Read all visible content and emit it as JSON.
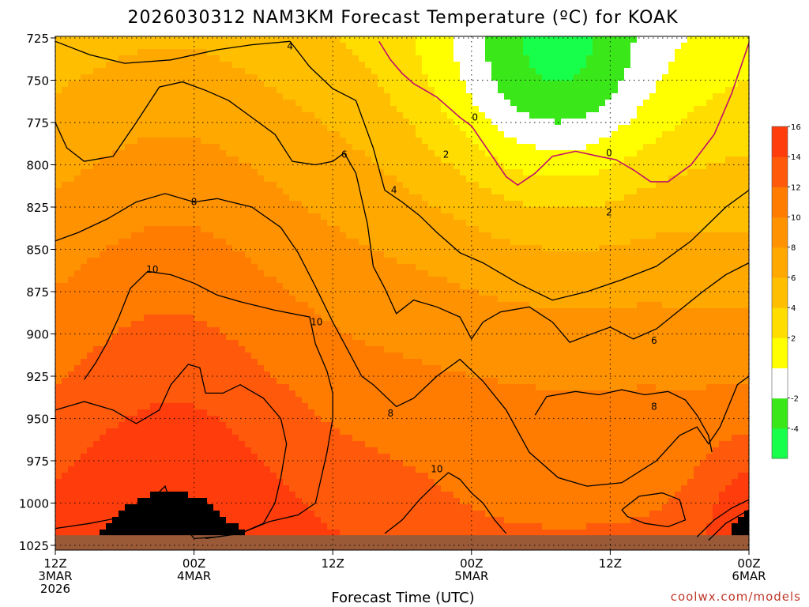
{
  "title": "2026030312 NAM3KM Forecast Temperature (ºC) for KOAK",
  "xlabel": "Forecast Time (UTC)",
  "credit": "coolwx.com/models",
  "colors": {
    "bands": [
      "#18ff4b",
      "#3ae81a",
      "#ffffff",
      "#ffff00",
      "#ffdd00",
      "#ffbf00",
      "#ffa800",
      "#ff9200",
      "#ff7c00",
      "#ff5a0b",
      "#ff3c0c"
    ],
    "ground": "#9a5a38",
    "contour": "#000000",
    "freezing_contour": "#c0106a"
  },
  "chart_data": {
    "type": "heatmap",
    "title": "2026030312 NAM3KM Forecast Temperature (ºC) for KOAK",
    "xlabel": "Forecast Time (UTC)",
    "ylabel": "",
    "x_ticks": [
      {
        "hour": 0,
        "lines": [
          "12Z",
          "3MAR",
          "2026"
        ]
      },
      {
        "hour": 12,
        "lines": [
          "00Z",
          "4MAR"
        ]
      },
      {
        "hour": 24,
        "lines": [
          "12Z"
        ]
      },
      {
        "hour": 36,
        "lines": [
          "00Z",
          "5MAR"
        ]
      },
      {
        "hour": 48,
        "lines": [
          "12Z"
        ]
      },
      {
        "hour": 60,
        "lines": [
          "00Z",
          "6MAR"
        ]
      }
    ],
    "xlim": [
      0,
      60
    ],
    "y_ticks": [
      "725",
      "750",
      "775",
      "800",
      "825",
      "850",
      "875",
      "900",
      "925",
      "950",
      "975",
      "1000",
      "1025"
    ],
    "ylim": [
      725,
      1027
    ],
    "grid": true,
    "colorbar": {
      "levels": [
        -6,
        -4,
        -2,
        0,
        2,
        4,
        6,
        8,
        10,
        12,
        14,
        16,
        18
      ],
      "labels": [
        "-4",
        "-2",
        "2",
        "4",
        "6",
        "8",
        "10",
        "12",
        "14",
        "16"
      ]
    },
    "contour_labels": [
      {
        "text": "4",
        "hour": 20.3,
        "p": 730
      },
      {
        "text": "0",
        "hour": 36.3,
        "p": 772
      },
      {
        "text": "0",
        "hour": 47.9,
        "p": 793
      },
      {
        "text": "2",
        "hour": 33.8,
        "p": 794
      },
      {
        "text": "2",
        "hour": 47.9,
        "p": 828
      },
      {
        "text": "6",
        "hour": 25.0,
        "p": 794
      },
      {
        "text": "4",
        "hour": 29.3,
        "p": 815
      },
      {
        "text": "8",
        "hour": 12.0,
        "p": 822
      },
      {
        "text": "10",
        "hour": 8.4,
        "p": 862
      },
      {
        "text": "10",
        "hour": 22.6,
        "p": 893
      },
      {
        "text": "6",
        "hour": 51.8,
        "p": 904
      },
      {
        "text": "8",
        "hour": 51.8,
        "p": 943
      },
      {
        "text": "8",
        "hour": 29.0,
        "p": 947
      },
      {
        "text": "10",
        "hour": 33.0,
        "p": 980
      }
    ],
    "contours": [
      {
        "level": 4,
        "points": [
          [
            0,
            727
          ],
          [
            3,
            735
          ],
          [
            6,
            740
          ],
          [
            10,
            738
          ],
          [
            14,
            732
          ],
          [
            17,
            729
          ],
          [
            20.3,
            727
          ]
        ]
      },
      {
        "level": 4,
        "points": [
          [
            20.3,
            727
          ],
          [
            22,
            742
          ],
          [
            24,
            755
          ],
          [
            26,
            762
          ],
          [
            27.5,
            790
          ],
          [
            28.5,
            815
          ],
          [
            30,
            822
          ],
          [
            31.5,
            830
          ],
          [
            33,
            840
          ],
          [
            35,
            852
          ],
          [
            37,
            858
          ],
          [
            40,
            870
          ],
          [
            43,
            880
          ],
          [
            46,
            875
          ],
          [
            49,
            868
          ],
          [
            52,
            860
          ],
          [
            55,
            845
          ],
          [
            58,
            825
          ],
          [
            60,
            815
          ]
        ]
      },
      {
        "level": 6,
        "points": [
          [
            0,
            775
          ],
          [
            1,
            790
          ],
          [
            2.5,
            798
          ],
          [
            5,
            795
          ],
          [
            7,
            775
          ],
          [
            9,
            754
          ],
          [
            11,
            751
          ],
          [
            13,
            756
          ],
          [
            15,
            762
          ],
          [
            17,
            772
          ],
          [
            19,
            782
          ],
          [
            20.5,
            798
          ],
          [
            22.5,
            800
          ],
          [
            24,
            798
          ],
          [
            25,
            793
          ],
          [
            26,
            805
          ],
          [
            27,
            835
          ],
          [
            27.5,
            860
          ],
          [
            28.5,
            873
          ],
          [
            29.5,
            888
          ],
          [
            31,
            880
          ],
          [
            33,
            884
          ],
          [
            35,
            890
          ],
          [
            36,
            903
          ],
          [
            37,
            893
          ],
          [
            38.5,
            887
          ],
          [
            41,
            884
          ],
          [
            43,
            893
          ],
          [
            44.5,
            905
          ],
          [
            46,
            901
          ],
          [
            48,
            896
          ],
          [
            50,
            903
          ],
          [
            52,
            897
          ],
          [
            54,
            886
          ],
          [
            56,
            875
          ],
          [
            58,
            865
          ],
          [
            60,
            858
          ]
        ]
      },
      {
        "level": 8,
        "points": [
          [
            0,
            845
          ],
          [
            2,
            840
          ],
          [
            4.5,
            832
          ],
          [
            7,
            822
          ],
          [
            9.5,
            817
          ],
          [
            12,
            822
          ],
          [
            14,
            820
          ],
          [
            17,
            825
          ],
          [
            19.5,
            837
          ],
          [
            21,
            852
          ],
          [
            22.5,
            872
          ],
          [
            24,
            893
          ],
          [
            25.5,
            912
          ],
          [
            26.5,
            925
          ],
          [
            27.5,
            930
          ],
          [
            29.5,
            943
          ],
          [
            31,
            938
          ],
          [
            33,
            925
          ],
          [
            35,
            915
          ],
          [
            37,
            928
          ],
          [
            39,
            945
          ],
          [
            41,
            970
          ],
          [
            43.5,
            985
          ],
          [
            46,
            990
          ],
          [
            49,
            988
          ],
          [
            52,
            975
          ],
          [
            54,
            960
          ],
          [
            55.5,
            955
          ],
          [
            56.5,
            965
          ],
          [
            57.5,
            955
          ],
          [
            59,
            930
          ],
          [
            60,
            925
          ]
        ]
      },
      {
        "level": 8,
        "points": [
          [
            41.5,
            948
          ],
          [
            42.5,
            937
          ],
          [
            45,
            934
          ],
          [
            47,
            936
          ],
          [
            49,
            933
          ],
          [
            51,
            936
          ],
          [
            53,
            934
          ],
          [
            54.5,
            939
          ],
          [
            55.5,
            948
          ],
          [
            56.5,
            960
          ],
          [
            56.8,
            970
          ]
        ]
      },
      {
        "level": 10,
        "points": [
          [
            2.5,
            927
          ],
          [
            3.5,
            917
          ],
          [
            4.5,
            905
          ],
          [
            5.5,
            890
          ],
          [
            6.5,
            873
          ],
          [
            8,
            863
          ],
          [
            10,
            865
          ],
          [
            12,
            870
          ],
          [
            14,
            877
          ],
          [
            16,
            881
          ],
          [
            19,
            886
          ],
          [
            22,
            890
          ],
          [
            22.5,
            906
          ],
          [
            23.5,
            922
          ],
          [
            24,
            935
          ],
          [
            24,
            950
          ],
          [
            23.5,
            970
          ],
          [
            23,
            985
          ],
          [
            22.5,
            1000
          ],
          [
            21,
            1007
          ],
          [
            18.5,
            1011
          ],
          [
            16,
            1018
          ],
          [
            14,
            1020
          ],
          [
            12,
            1021
          ]
        ]
      },
      {
        "level": 10,
        "points": [
          [
            28.5,
            1018
          ],
          [
            30,
            1010
          ],
          [
            31.5,
            998
          ],
          [
            33,
            988
          ],
          [
            34,
            982
          ],
          [
            35,
            986
          ],
          [
            36,
            994
          ],
          [
            37,
            1000
          ],
          [
            38,
            1010
          ],
          [
            39,
            1018
          ]
        ]
      },
      {
        "level": 10,
        "points": [
          [
            49,
            1004
          ],
          [
            50.5,
            996
          ],
          [
            52.5,
            994
          ],
          [
            54,
            998
          ],
          [
            54.5,
            1010
          ],
          [
            53,
            1014
          ],
          [
            51,
            1012
          ],
          [
            49.5,
            1008
          ],
          [
            49,
            1004
          ]
        ]
      },
      {
        "level": 10,
        "points": [
          [
            55.5,
            1020
          ],
          [
            57,
            1010
          ],
          [
            58.5,
            1003
          ],
          [
            60,
            998
          ]
        ]
      },
      {
        "level": 10,
        "points": [
          [
            56.5,
            1022
          ],
          [
            58,
            1012
          ],
          [
            59.5,
            1006
          ],
          [
            60,
            1004
          ]
        ]
      },
      {
        "level": 12,
        "points": [
          [
            0,
            945
          ],
          [
            2.5,
            940
          ],
          [
            5,
            945
          ],
          [
            7,
            953
          ],
          [
            9,
            945
          ],
          [
            10,
            930
          ],
          [
            11.5,
            918
          ],
          [
            12.5,
            920
          ],
          [
            13,
            935
          ],
          [
            14.5,
            935
          ],
          [
            16,
            930
          ],
          [
            18,
            938
          ],
          [
            19.5,
            950
          ],
          [
            20,
            965
          ],
          [
            19.5,
            985
          ],
          [
            19,
            1000
          ],
          [
            18,
            1012
          ],
          [
            16,
            1018
          ],
          [
            13,
            1021
          ]
        ]
      },
      {
        "level": 12,
        "points": [
          [
            0,
            1015
          ],
          [
            3,
            1012
          ],
          [
            6,
            1008
          ],
          [
            8,
            1000
          ],
          [
            9.5,
            990
          ],
          [
            10,
            1000
          ],
          [
            11,
            1012
          ],
          [
            12,
            1021
          ]
        ]
      }
    ],
    "freezing_contours": [
      {
        "level": 0,
        "points": [
          [
            28,
            727
          ],
          [
            29,
            738
          ],
          [
            30,
            746
          ],
          [
            31,
            752
          ],
          [
            32,
            756
          ],
          [
            33,
            760
          ],
          [
            34,
            766
          ],
          [
            35,
            772
          ],
          [
            36,
            777
          ],
          [
            37,
            787
          ],
          [
            38,
            797
          ],
          [
            39,
            807
          ],
          [
            40,
            812
          ],
          [
            41.5,
            805
          ],
          [
            43,
            795
          ],
          [
            45,
            792
          ],
          [
            47,
            795
          ],
          [
            48.5,
            797
          ],
          [
            50,
            803
          ],
          [
            51.5,
            810
          ],
          [
            53,
            810
          ],
          [
            55,
            800
          ],
          [
            57,
            782
          ],
          [
            58.5,
            758
          ],
          [
            59.5,
            738
          ],
          [
            60,
            728
          ]
        ]
      }
    ],
    "ground": {
      "pressure_top": 1019
    }
  }
}
